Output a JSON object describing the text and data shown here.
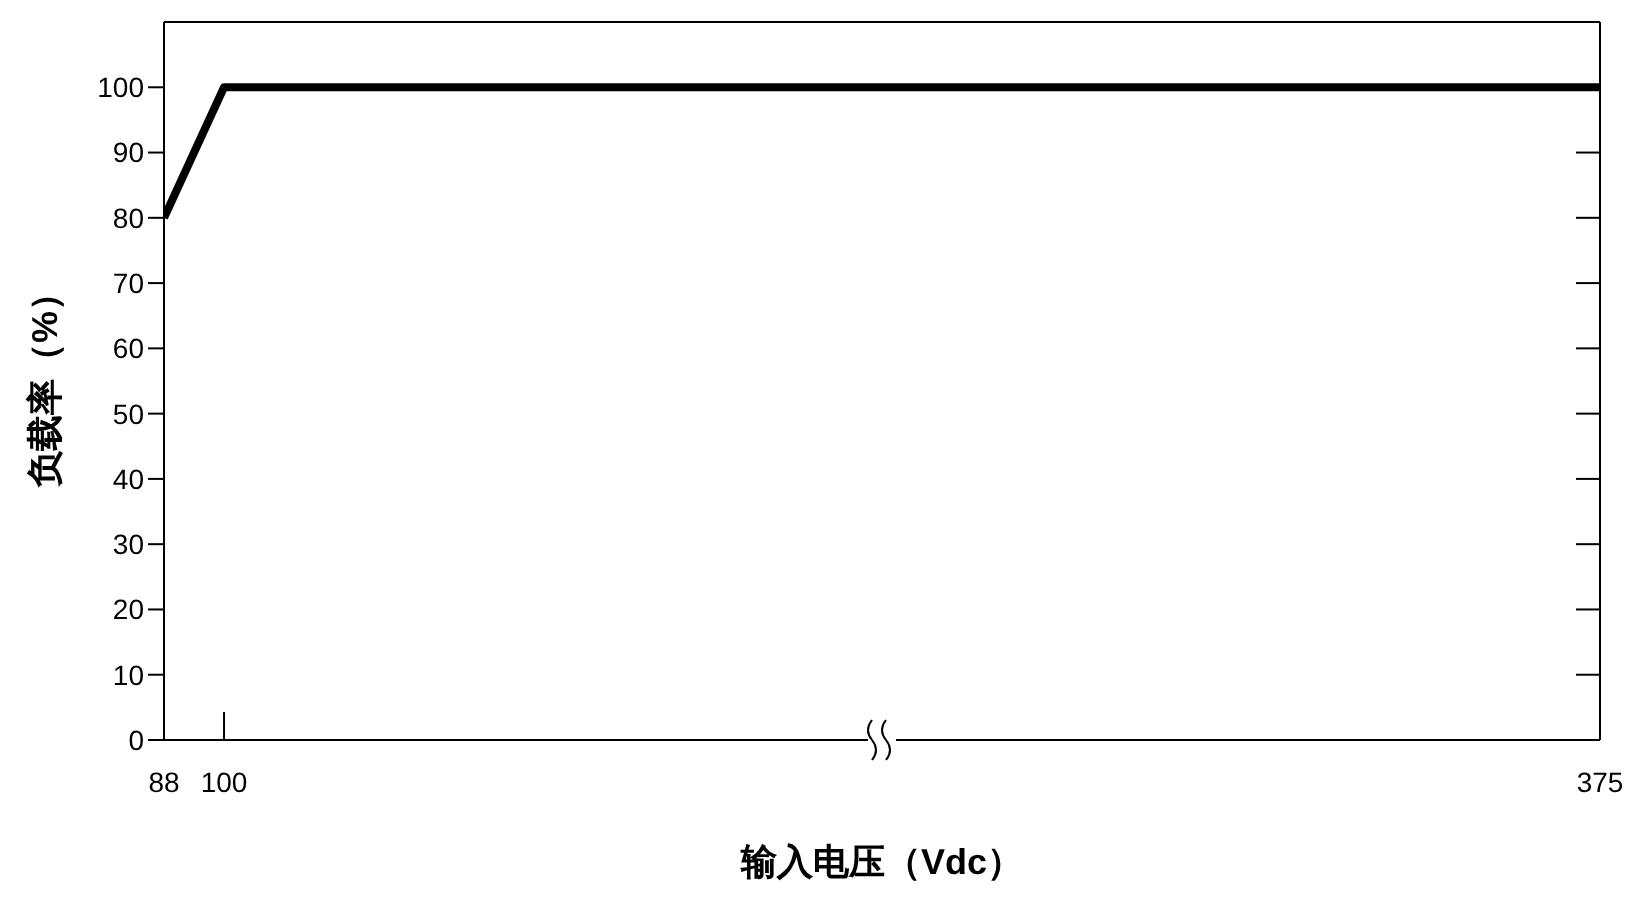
{
  "chart_data": {
    "type": "line",
    "xlabel": "输入电压（Vdc）",
    "ylabel": "负载率（%）",
    "x": [
      88,
      100,
      375
    ],
    "series": [
      {
        "color": "#000000",
        "values": [
          80,
          100,
          100
        ]
      }
    ],
    "xlim": [
      88,
      375
    ],
    "xticks": [
      88,
      100,
      375
    ],
    "ylim": [
      0,
      110
    ],
    "yticks": [
      0,
      10,
      20,
      30,
      40,
      50,
      60,
      70,
      80,
      90,
      100
    ],
    "marker": "none",
    "line_style": "solid"
  }
}
